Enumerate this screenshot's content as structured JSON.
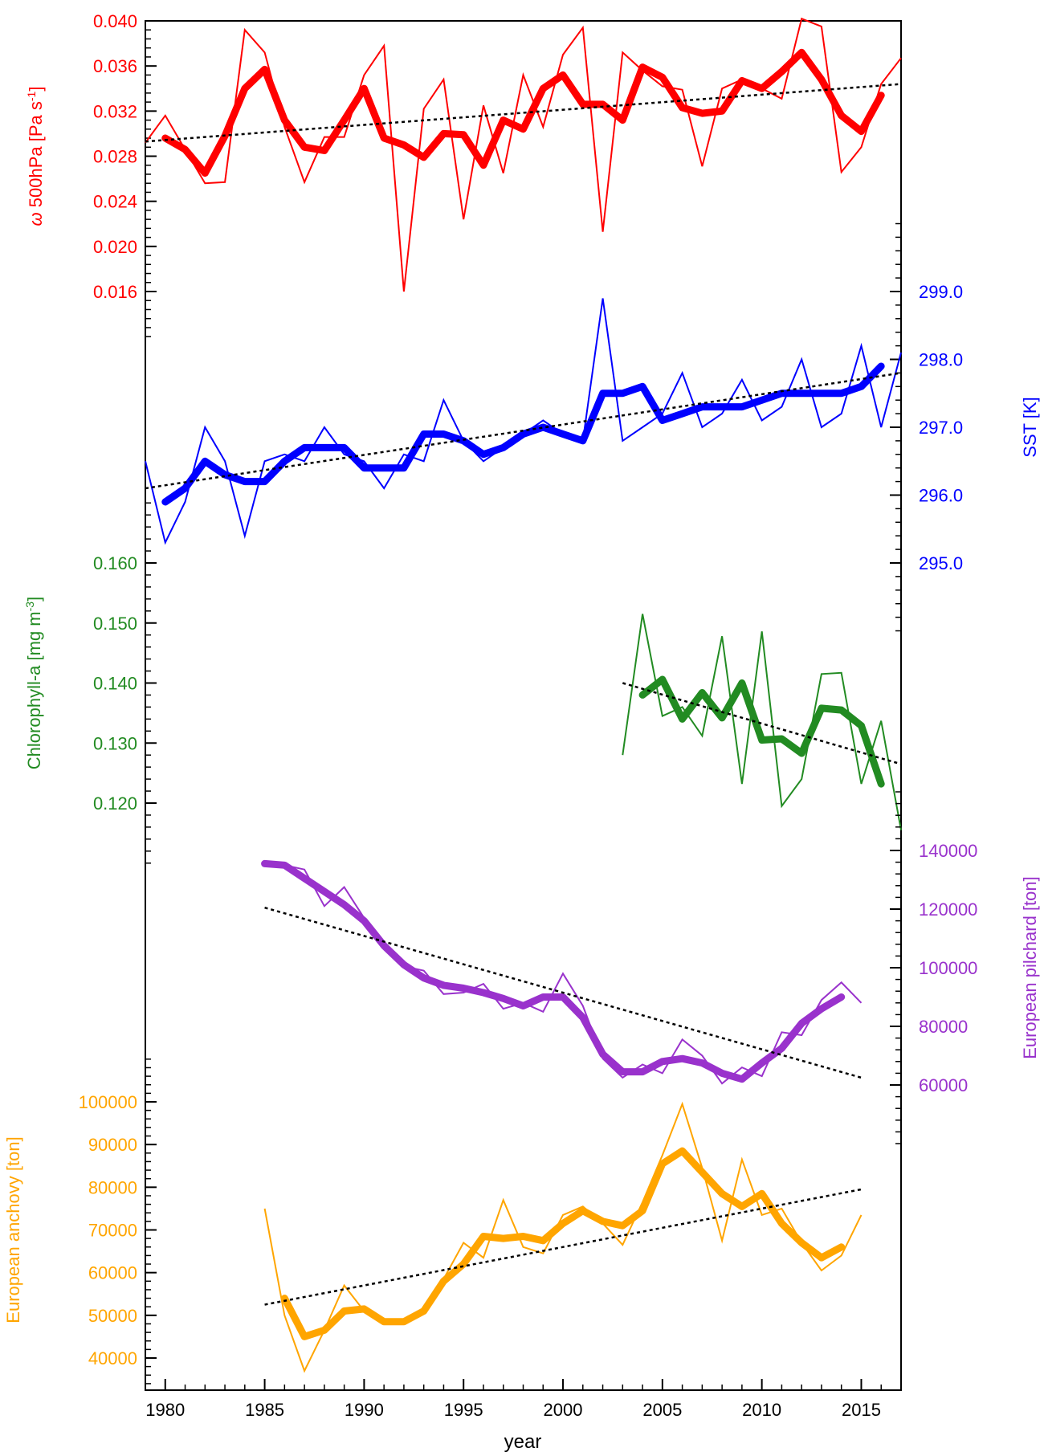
{
  "chart_data": {
    "type": "line",
    "xlabel": "year",
    "xlim": [
      1979,
      2017
    ],
    "xticks": [
      1980,
      1985,
      1990,
      1995,
      2000,
      2005,
      2010,
      2015
    ],
    "trend_style": "black dotted line",
    "panels": [
      {
        "id": "omega",
        "side": "left",
        "color": "#ff0000",
        "ylabel_symbol": "ω",
        "ylabel_main": " 500hPa [Pa s",
        "ylabel_sup": "-1",
        "ylabel_end": "]",
        "ylim": [
          0.016,
          0.04
        ],
        "yticks": [
          "0.016",
          "0.020",
          "0.024",
          "0.028",
          "0.032",
          "0.036",
          "0.040"
        ],
        "tickvals": [
          0.016,
          0.02,
          0.024,
          0.028,
          0.032,
          0.036,
          0.04
        ],
        "annual": {
          "x": [
            1979,
            1980,
            1981,
            1982,
            1983,
            1984,
            1985,
            1986,
            1987,
            1988,
            1989,
            1990,
            1991,
            1992,
            1993,
            1994,
            1995,
            1996,
            1997,
            1998,
            1999,
            2000,
            2001,
            2002,
            2003,
            2004,
            2005,
            2006,
            2007,
            2008,
            2009,
            2010,
            2011,
            2012,
            2013,
            2014,
            2015,
            2016,
            2017
          ],
          "y": [
            0.0292,
            0.0316,
            0.0286,
            0.0256,
            0.0257,
            0.0392,
            0.0372,
            0.0306,
            0.0257,
            0.0297,
            0.0297,
            0.0352,
            0.0378,
            0.016,
            0.0322,
            0.0348,
            0.0224,
            0.0325,
            0.0265,
            0.0352,
            0.0306,
            0.037,
            0.0394,
            0.0213,
            0.0372,
            0.0356,
            0.0342,
            0.0339,
            0.0271,
            0.034,
            0.0348,
            0.034,
            0.0331,
            0.0402,
            0.0395,
            0.0266,
            0.0288,
            0.0344,
            0.0367
          ]
        },
        "smooth": {
          "x": [
            1980,
            1981,
            1982,
            1983,
            1984,
            1985,
            1986,
            1987,
            1988,
            1989,
            1990,
            1991,
            1992,
            1993,
            1994,
            1995,
            1996,
            1997,
            1998,
            1999,
            2000,
            2001,
            2002,
            2003,
            2004,
            2005,
            2006,
            2007,
            2008,
            2009,
            2010,
            2011,
            2012,
            2013,
            2014,
            2015,
            2016
          ],
          "y": [
            0.0296,
            0.0286,
            0.0265,
            0.0298,
            0.034,
            0.0357,
            0.0312,
            0.0288,
            0.0285,
            0.0312,
            0.034,
            0.0296,
            0.029,
            0.0279,
            0.03,
            0.0299,
            0.0272,
            0.0312,
            0.0304,
            0.034,
            0.0352,
            0.0326,
            0.0326,
            0.0312,
            0.0359,
            0.035,
            0.0323,
            0.0318,
            0.032,
            0.0347,
            0.034,
            0.0355,
            0.0372,
            0.0348,
            0.0316,
            0.0302,
            0.0334
          ]
        },
        "trend": {
          "x": [
            1979,
            2017
          ],
          "y": [
            0.0293,
            0.0344
          ]
        }
      },
      {
        "id": "sst",
        "side": "right",
        "color": "#0000ff",
        "ylabel": "SST [K]",
        "ylim": [
          295.0,
          299.0
        ],
        "yticks": [
          "295.0",
          "296.0",
          "297.0",
          "298.0",
          "299.0"
        ],
        "tickvals": [
          295.0,
          296.0,
          297.0,
          298.0,
          299.0
        ],
        "annual": {
          "x": [
            1979,
            1980,
            1981,
            1982,
            1983,
            1984,
            1985,
            1986,
            1987,
            1988,
            1989,
            1990,
            1991,
            1992,
            1993,
            1994,
            1995,
            1996,
            1997,
            1998,
            1999,
            2000,
            2001,
            2002,
            2003,
            2004,
            2005,
            2006,
            2007,
            2008,
            2009,
            2010,
            2011,
            2012,
            2013,
            2014,
            2015,
            2016,
            2017
          ],
          "y": [
            296.5,
            295.3,
            295.9,
            297.0,
            296.5,
            295.4,
            296.5,
            296.6,
            296.5,
            297.0,
            296.6,
            296.5,
            296.1,
            296.6,
            296.5,
            297.4,
            296.8,
            296.5,
            296.7,
            296.9,
            297.1,
            296.9,
            296.8,
            298.9,
            296.8,
            297.0,
            297.2,
            297.8,
            297.0,
            297.2,
            297.7,
            297.1,
            297.3,
            298.0,
            297.0,
            297.2,
            298.2,
            297.0,
            298.1
          ]
        },
        "smooth": {
          "x": [
            1980,
            1981,
            1982,
            1983,
            1984,
            1985,
            1986,
            1987,
            1988,
            1989,
            1990,
            1991,
            1992,
            1993,
            1994,
            1995,
            1996,
            1997,
            1998,
            1999,
            2000,
            2001,
            2002,
            2003,
            2004,
            2005,
            2006,
            2007,
            2008,
            2009,
            2010,
            2011,
            2012,
            2013,
            2014,
            2015,
            2016
          ],
          "y": [
            295.9,
            296.1,
            296.5,
            296.3,
            296.2,
            296.2,
            296.5,
            296.7,
            296.7,
            296.7,
            296.4,
            296.4,
            296.4,
            296.9,
            296.9,
            296.8,
            296.6,
            296.7,
            296.9,
            297.0,
            296.9,
            296.8,
            297.5,
            297.5,
            297.6,
            297.1,
            297.2,
            297.3,
            297.3,
            297.3,
            297.4,
            297.5,
            297.5,
            297.5,
            297.5,
            297.6,
            297.9
          ]
        },
        "trend": {
          "x": [
            1979,
            2017
          ],
          "y": [
            296.1,
            297.8
          ]
        }
      },
      {
        "id": "chl",
        "side": "left",
        "color": "#228b22",
        "ylabel_main": "Chlorophyll-a [mg m",
        "ylabel_sup": "-3",
        "ylabel_end": "]",
        "ylim": [
          0.12,
          0.16
        ],
        "yticks": [
          "0.120",
          "0.130",
          "0.140",
          "0.150",
          "0.160"
        ],
        "tickvals": [
          0.12,
          0.13,
          0.14,
          0.15,
          0.16
        ],
        "annual": {
          "x": [
            2003,
            2004,
            2005,
            2006,
            2007,
            2008,
            2009,
            2010,
            2011,
            2012,
            2013,
            2014,
            2015,
            2016,
            2017
          ],
          "y": [
            0.128,
            0.1515,
            0.1345,
            0.136,
            0.1312,
            0.1478,
            0.1232,
            0.1486,
            0.1195,
            0.124,
            0.1415,
            0.1417,
            0.1232,
            0.1337,
            0.1155
          ]
        },
        "smooth": {
          "x": [
            2004,
            2005,
            2006,
            2007,
            2008,
            2009,
            2010,
            2011,
            2012,
            2013,
            2014,
            2015,
            2016
          ],
          "y": [
            0.138,
            0.1406,
            0.134,
            0.1384,
            0.1342,
            0.14,
            0.1305,
            0.1307,
            0.1283,
            0.1358,
            0.1355,
            0.1329,
            0.1232
          ]
        },
        "trend": {
          "x": [
            2003,
            2017
          ],
          "y": [
            0.14,
            0.1265
          ]
        }
      },
      {
        "id": "pilchard",
        "side": "right",
        "color": "#9932cc",
        "ylabel": "European pilchard [ton]",
        "ylim": [
          60000,
          140000
        ],
        "yticks": [
          "60000",
          "80000",
          "100000",
          "120000",
          "140000"
        ],
        "tickvals": [
          60000,
          80000,
          100000,
          120000,
          140000
        ],
        "annual": {
          "x": [
            1985,
            1986,
            1987,
            1988,
            1989,
            1990,
            1991,
            1992,
            1993,
            1994,
            1995,
            1996,
            1997,
            1998,
            1999,
            2000,
            2001,
            2002,
            2003,
            2004,
            2005,
            2006,
            2007,
            2008,
            2009,
            2010,
            2011,
            2012,
            2013,
            2014,
            2015
          ],
          "y": [
            135500,
            135000,
            133500,
            121000,
            127500,
            117000,
            107500,
            100500,
            99000,
            91000,
            91500,
            94500,
            86000,
            88000,
            85000,
            98000,
            87000,
            69000,
            62500,
            67000,
            64000,
            75500,
            70000,
            60500,
            66000,
            63000,
            78000,
            77000,
            89000,
            95000,
            88000
          ]
        },
        "smooth": {
          "x": [
            1985,
            1986,
            1987,
            1988,
            1989,
            1990,
            1991,
            1992,
            1993,
            1994,
            1995,
            1996,
            1997,
            1998,
            1999,
            2000,
            2001,
            2002,
            2003,
            2004,
            2005,
            2006,
            2007,
            2008,
            2009,
            2010,
            2011,
            2012,
            2013,
            2014
          ],
          "y": [
            135500,
            135000,
            130500,
            126000,
            121500,
            116000,
            107500,
            101000,
            96500,
            94000,
            93000,
            91500,
            89500,
            87000,
            90000,
            90000,
            83000,
            70500,
            64500,
            64500,
            68000,
            69000,
            67500,
            64000,
            62000,
            67500,
            72500,
            81000,
            86000,
            90000
          ]
        },
        "trend": {
          "x": [
            1985,
            2015
          ],
          "y": [
            120500,
            62500
          ]
        }
      },
      {
        "id": "anchovy",
        "side": "left",
        "color": "#ffa500",
        "ylabel": "European anchovy [ton]",
        "ylim": [
          40000,
          100000
        ],
        "yticks": [
          "40000",
          "50000",
          "60000",
          "70000",
          "80000",
          "90000",
          "100000"
        ],
        "tickvals": [
          40000,
          50000,
          60000,
          70000,
          80000,
          90000,
          100000
        ],
        "annual": {
          "x": [
            1985,
            1986,
            1987,
            1988,
            1989,
            1990,
            1991,
            1992,
            1993,
            1994,
            1995,
            1996,
            1997,
            1998,
            1999,
            2000,
            2001,
            2002,
            2003,
            2004,
            2005,
            2006,
            2007,
            2008,
            2009,
            2010,
            2011,
            2012,
            2013,
            2014,
            2015
          ],
          "y": [
            75000,
            50000,
            37000,
            46500,
            57000,
            51000,
            48500,
            48500,
            50500,
            58500,
            67000,
            63500,
            77000,
            66000,
            64500,
            73500,
            75500,
            71500,
            66500,
            76500,
            87500,
            99500,
            84500,
            67500,
            86500,
            73500,
            75000,
            67000,
            60500,
            64000,
            73500
          ]
        },
        "smooth": {
          "x": [
            1986,
            1987,
            1988,
            1989,
            1990,
            1991,
            1992,
            1993,
            1994,
            1995,
            1996,
            1997,
            1998,
            1999,
            2000,
            2001,
            2002,
            2003,
            2004,
            2005,
            2006,
            2007,
            2008,
            2009,
            2010,
            2011,
            2012,
            2013,
            2014
          ],
          "y": [
            54000,
            45000,
            46500,
            51000,
            51500,
            48500,
            48500,
            51000,
            58000,
            62000,
            68500,
            68000,
            68500,
            67500,
            71500,
            74500,
            72000,
            71000,
            74500,
            85500,
            88500,
            83500,
            78500,
            75500,
            78500,
            71500,
            67000,
            63500,
            66000
          ]
        },
        "trend": {
          "x": [
            1985,
            2015
          ],
          "y": [
            52500,
            79500
          ]
        }
      }
    ]
  }
}
